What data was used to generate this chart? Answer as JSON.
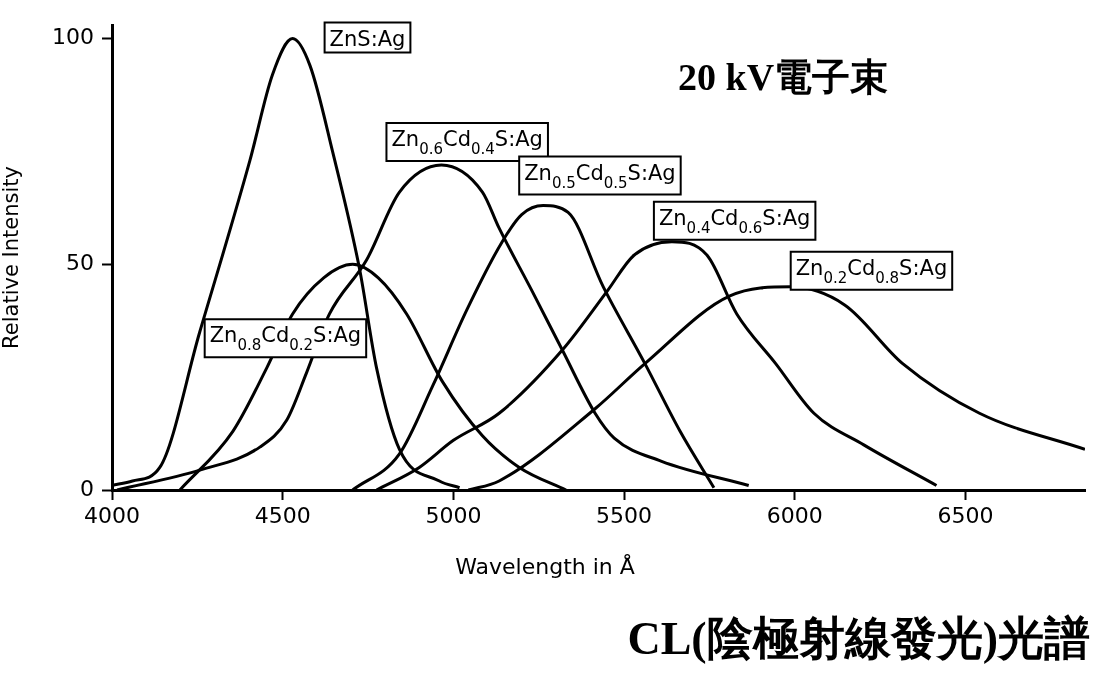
{
  "chart_data": {
    "type": "line",
    "title": "CL(陰極射線發光)光譜",
    "subtitle": "20 kV電子束",
    "xlabel": "Wavelength in Å",
    "ylabel": "Relative Intensity",
    "xlim": [
      4000,
      6850
    ],
    "xticks": [
      4000,
      4500,
      5000,
      5500,
      6000,
      6500
    ],
    "ylim": [
      0,
      103
    ],
    "yticks": [
      0,
      50,
      100
    ],
    "marker": "none",
    "line_style": "solid",
    "series": [
      {
        "name": "ZnS:Ag",
        "color": "#000000",
        "x": [
          4000,
          4060,
          4140,
          4257,
          4404,
          4470,
          4529,
          4580,
          4646,
          4725,
          4775,
          4842,
          4959,
          5018
        ],
        "values": [
          1,
          2,
          5,
          35,
          73,
          92,
          100,
          94,
          75,
          49,
          27,
          9,
          2,
          0.5
        ]
      },
      {
        "name": "Zn$_{0.8}$Cd$_{0.2}$S:Ag",
        "color": "#000000",
        "x": [
          4199,
          4354,
          4453,
          4529,
          4620,
          4705,
          4780,
          4863,
          4968,
          5085,
          5193,
          5330
        ],
        "values": [
          0,
          13,
          27,
          39,
          47,
          50,
          47,
          39,
          24,
          12,
          5,
          0
        ]
      },
      {
        "name": "Zn$_{0.6}$Cd$_{0.4}$S:Ag",
        "color": "#000000",
        "x": [
          4015,
          4257,
          4433,
          4512,
          4570,
          4637,
          4746,
          4842,
          4965,
          5085,
          5134,
          5231,
          5319,
          5415,
          5471,
          5608,
          5865
        ],
        "values": [
          0,
          4.4,
          9.5,
          15.5,
          26,
          39,
          51,
          66,
          72,
          66,
          58,
          44,
          31,
          17,
          11.5,
          6.4,
          1
        ]
      },
      {
        "name": "Zn$_{0.5}$Cd$_{0.5}$S:Ag",
        "color": "#000000",
        "x": [
          4705,
          4842,
          4939,
          5040,
          5143,
          5200,
          5263,
          5336,
          5439,
          5561,
          5664,
          5763
        ],
        "values": [
          0,
          8,
          23,
          40,
          55,
          61,
          63,
          61.5,
          45,
          28,
          13,
          0.5
        ]
      },
      {
        "name": "Zn$_{0.4}$Cd$_{0.6}$S:Ag",
        "color": "#000000",
        "x": [
          4775,
          4900,
          5000,
          5134,
          5319,
          5450,
          5529,
          5640,
          5743,
          5830,
          5944,
          6056,
          6202,
          6415
        ],
        "values": [
          0,
          5,
          11,
          17,
          31,
          44,
          52,
          55,
          52,
          39,
          28,
          17,
          10,
          1
        ]
      },
      {
        "name": "Zn$_{0.2}$Cd$_{0.8}$S:Ag",
        "color": "#000000",
        "x": [
          5044,
          5134,
          5415,
          5561,
          5810,
          5988,
          6146,
          6316,
          6541,
          6850
        ],
        "values": [
          0,
          2,
          18,
          28,
          43,
          45,
          41,
          28,
          17,
          9
        ]
      }
    ]
  }
}
